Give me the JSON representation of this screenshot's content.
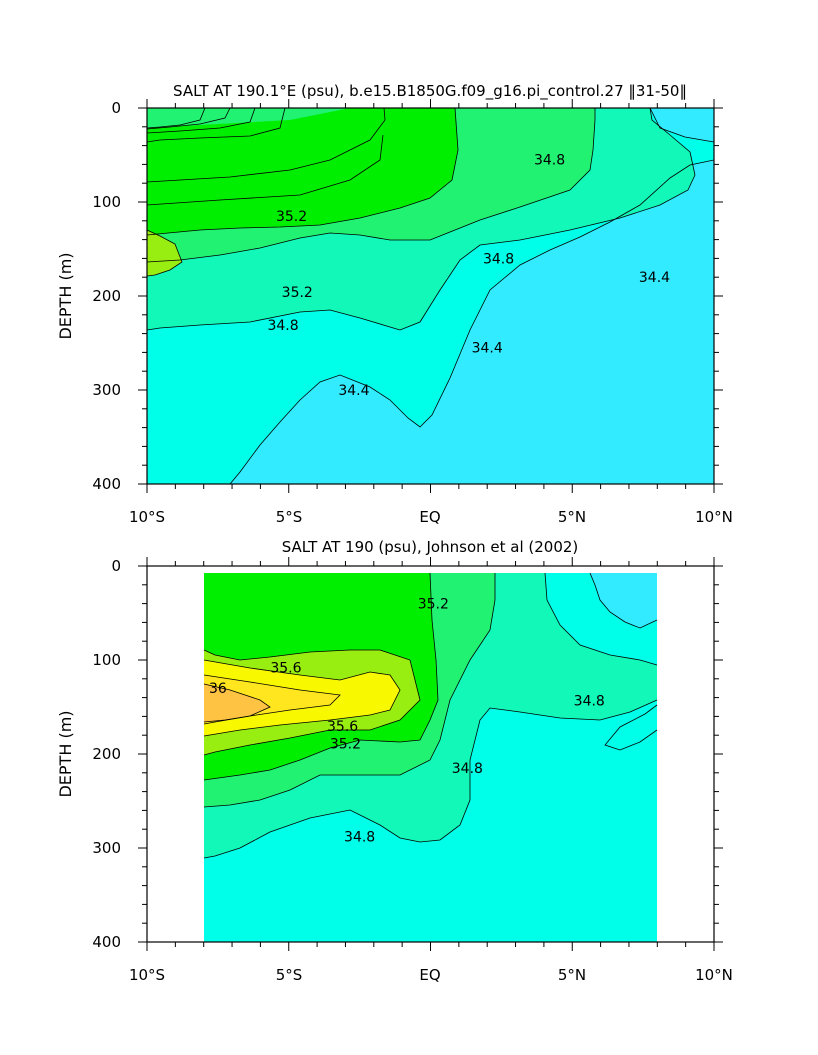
{
  "chart_data": [
    {
      "type": "heatmap",
      "subtype": "filled-contour",
      "title": "SALT AT 190.1°E (psu), b.e15.B1850G.f09_g16.pi_control.27 ‖31-50‖",
      "xlabel": "",
      "ylabel": "DEPTH (m)",
      "xlim": [
        -10,
        10
      ],
      "ylim": [
        400,
        0
      ],
      "x_ticks": [
        -10,
        -5,
        0,
        5,
        10
      ],
      "x_tick_labels": [
        "10°S",
        "5°S",
        "EQ",
        "5°N",
        "10°N"
      ],
      "y_ticks": [
        0,
        100,
        200,
        300,
        400
      ],
      "y_tick_labels": [
        "0",
        "100",
        "200",
        "300",
        "400"
      ],
      "grid": false,
      "levels": [
        34.4,
        34.6,
        34.8,
        35.0,
        35.2,
        35.4
      ],
      "colors": [
        "#33ebff",
        "#00ffe9",
        "#11f8b8",
        "#22f271",
        "#00ef00",
        "#99ee11"
      ],
      "background": "#33ebff",
      "contour_labels": [
        {
          "text": "35.2",
          "x": -4.9,
          "y": 115
        },
        {
          "text": "35.2",
          "x": -4.7,
          "y": 196
        },
        {
          "text": "34.8",
          "x": -5.2,
          "y": 231
        },
        {
          "text": "34.8",
          "x": 4.2,
          "y": 55
        },
        {
          "text": "34.8",
          "x": 2.4,
          "y": 160
        },
        {
          "text": "34.4",
          "x": 7.9,
          "y": 180
        },
        {
          "text": "34.4",
          "x": 2.0,
          "y": 255
        },
        {
          "text": "34.4",
          "x": -2.7,
          "y": 300
        }
      ]
    },
    {
      "type": "heatmap",
      "subtype": "filled-contour",
      "title": "SALT AT 190 (psu), Johnson et al (2002)",
      "xlabel": "",
      "ylabel": "DEPTH (m)",
      "xlim": [
        -10,
        10
      ],
      "ylim": [
        400,
        0
      ],
      "data_extent": {
        "x": [
          -8,
          8
        ],
        "y": [
          5,
          400
        ]
      },
      "x_ticks": [
        -10,
        -5,
        0,
        5,
        10
      ],
      "x_tick_labels": [
        "10°S",
        "5°S",
        "EQ",
        "5°N",
        "10°N"
      ],
      "y_ticks": [
        0,
        100,
        200,
        300,
        400
      ],
      "y_tick_labels": [
        "0",
        "100",
        "200",
        "300",
        "400"
      ],
      "grid": false,
      "levels": [
        34.4,
        34.6,
        34.8,
        35.0,
        35.2,
        35.4,
        35.6,
        35.8,
        36.0
      ],
      "colors": [
        "#33ebff",
        "#00ffe9",
        "#11f8b8",
        "#22f271",
        "#00ef00",
        "#99ee11",
        "#f8f800",
        "#ffe61e",
        "#ffc343"
      ],
      "background": "#00ffe9",
      "contour_labels": [
        {
          "text": "35.2",
          "x": 0.1,
          "y": 40
        },
        {
          "text": "35.6",
          "x": -5.1,
          "y": 108
        },
        {
          "text": "36",
          "x": -7.5,
          "y": 130
        },
        {
          "text": "35.6",
          "x": -3.1,
          "y": 170
        },
        {
          "text": "35.2",
          "x": -3.0,
          "y": 189
        },
        {
          "text": "34.8",
          "x": 1.3,
          "y": 215
        },
        {
          "text": "34.8",
          "x": 5.6,
          "y": 143
        },
        {
          "text": "34.8",
          "x": -2.5,
          "y": 288
        }
      ]
    }
  ]
}
